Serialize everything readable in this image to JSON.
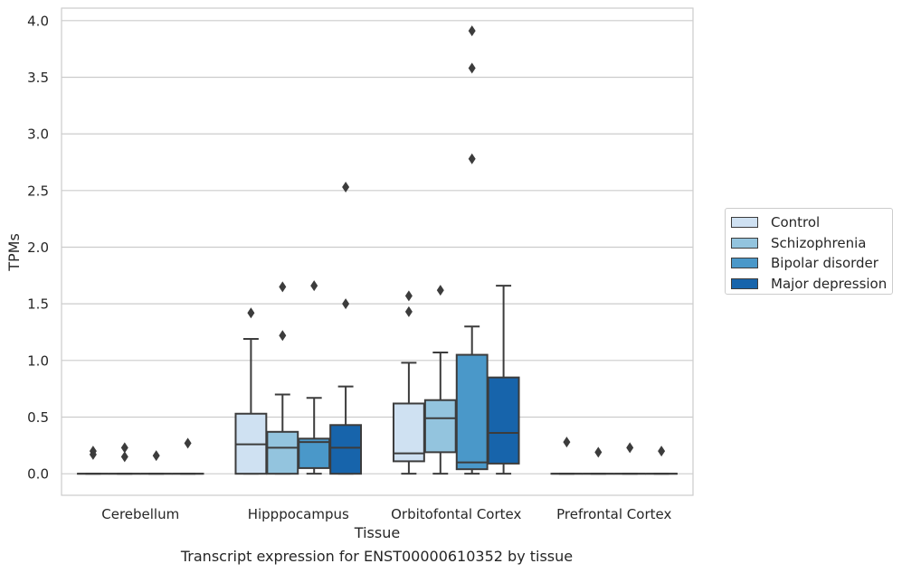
{
  "caption": "Transcript expression for ENST00000610352 by tissue",
  "colors": {
    "Control": "#cfe1f2",
    "Schizophrenia": "#93c4de",
    "Bipolar disorder": "#4a98c9",
    "Major depression": "#1764ab"
  },
  "chart_data": {
    "type": "box",
    "title": "",
    "xlabel": "Tissue",
    "ylabel": "TPMs",
    "ylim": [
      -0.19,
      4.11
    ],
    "yticks": [
      0.0,
      0.5,
      1.0,
      1.5,
      2.0,
      2.5,
      3.0,
      3.5,
      4.0
    ],
    "ytick_labels": [
      "0.0",
      "0.5",
      "1.0",
      "1.5",
      "2.0",
      "2.5",
      "3.0",
      "3.5",
      "4.0"
    ],
    "grid": true,
    "legend_position": "right",
    "categories": [
      "Cerebellum",
      "Hipppocampus",
      "Orbitofontal Cortex",
      "Prefrontal Cortex"
    ],
    "series": [
      {
        "name": "Control",
        "boxes": [
          {
            "min": 0,
            "q1": 0,
            "median": 0,
            "q3": 0,
            "max": 0,
            "outliers": [
              0.17,
              0.2
            ]
          },
          {
            "min": 0,
            "q1": 0,
            "median": 0.26,
            "q3": 0.53,
            "max": 1.19,
            "outliers": [
              1.42
            ]
          },
          {
            "min": 0,
            "q1": 0.11,
            "median": 0.18,
            "q3": 0.62,
            "max": 0.98,
            "outliers": [
              1.43,
              1.57
            ]
          },
          {
            "min": 0,
            "q1": 0,
            "median": 0,
            "q3": 0,
            "max": 0,
            "outliers": [
              0.28
            ]
          }
        ]
      },
      {
        "name": "Schizophrenia",
        "boxes": [
          {
            "min": 0,
            "q1": 0,
            "median": 0,
            "q3": 0,
            "max": 0,
            "outliers": [
              0.15,
              0.23
            ]
          },
          {
            "min": 0,
            "q1": 0,
            "median": 0.23,
            "q3": 0.37,
            "max": 0.7,
            "outliers": [
              1.22,
              1.65
            ]
          },
          {
            "min": 0,
            "q1": 0.19,
            "median": 0.49,
            "q3": 0.65,
            "max": 1.07,
            "outliers": [
              1.62
            ]
          },
          {
            "min": 0,
            "q1": 0,
            "median": 0,
            "q3": 0,
            "max": 0,
            "outliers": [
              0.19
            ]
          }
        ]
      },
      {
        "name": "Bipolar disorder",
        "boxes": [
          {
            "min": 0,
            "q1": 0,
            "median": 0,
            "q3": 0,
            "max": 0,
            "outliers": [
              0.16
            ]
          },
          {
            "min": 0,
            "q1": 0.05,
            "median": 0.28,
            "q3": 0.31,
            "max": 0.67,
            "outliers": [
              1.66
            ]
          },
          {
            "min": 0,
            "q1": 0.04,
            "median": 0.1,
            "q3": 1.05,
            "max": 1.3,
            "outliers": [
              2.78,
              3.58,
              3.91
            ]
          },
          {
            "min": 0,
            "q1": 0,
            "median": 0,
            "q3": 0,
            "max": 0,
            "outliers": [
              0.23
            ]
          }
        ]
      },
      {
        "name": "Major depression",
        "boxes": [
          {
            "min": 0,
            "q1": 0,
            "median": 0,
            "q3": 0,
            "max": 0,
            "outliers": [
              0.27
            ]
          },
          {
            "min": 0,
            "q1": 0,
            "median": 0.23,
            "q3": 0.43,
            "max": 0.77,
            "outliers": [
              1.5,
              2.53
            ]
          },
          {
            "min": 0,
            "q1": 0.09,
            "median": 0.36,
            "q3": 0.85,
            "max": 1.66,
            "outliers": []
          },
          {
            "min": 0,
            "q1": 0,
            "median": 0,
            "q3": 0,
            "max": 0,
            "outliers": [
              0.2
            ]
          }
        ]
      }
    ]
  }
}
